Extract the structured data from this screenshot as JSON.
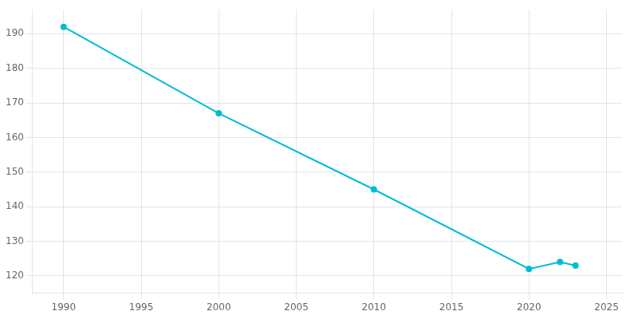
{
  "chart_data": {
    "type": "line",
    "x": [
      1990,
      2000,
      2010,
      2020,
      2022,
      2023
    ],
    "values": [
      192,
      167,
      145,
      122,
      124,
      123
    ],
    "color": "#00BCD4",
    "marker": "circle",
    "xlim": [
      1988,
      2026
    ],
    "xticks": [
      1990,
      1995,
      2000,
      2005,
      2010,
      2015,
      2020,
      2025
    ],
    "ylim": [
      115,
      197
    ],
    "yticks": [
      120,
      130,
      140,
      150,
      160,
      170,
      180,
      190
    ],
    "grid": true
  }
}
